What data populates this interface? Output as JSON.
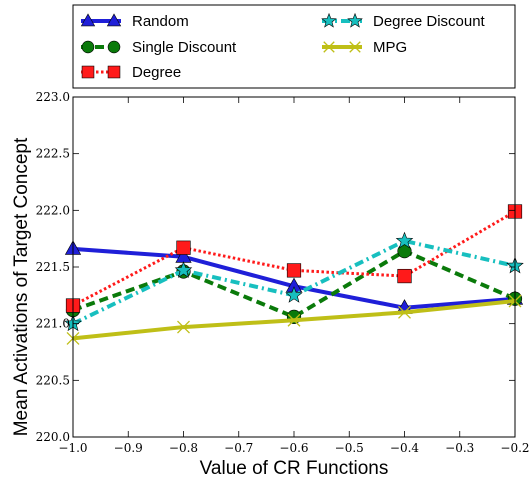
{
  "chart_data": {
    "type": "line",
    "x": [
      -1.0,
      -0.8,
      -0.6,
      -0.4,
      -0.2
    ],
    "xlabel": "Value of CR Functions",
    "ylabel": "Mean Activations of Target Concept",
    "xlim": [
      -1.0,
      -0.2
    ],
    "ylim": [
      220.0,
      223.0
    ],
    "xticks": [
      -1.0,
      -0.9,
      -0.8,
      -0.7,
      -0.6,
      -0.5,
      -0.4,
      -0.3,
      -0.2
    ],
    "xtick_labels": [
      "−1.0",
      "−0.9",
      "−0.8",
      "−0.7",
      "−0.6",
      "−0.5",
      "−0.4",
      "−0.3",
      "−0.2"
    ],
    "yticks": [
      220.0,
      220.5,
      221.0,
      221.5,
      222.0,
      222.5,
      223.0
    ],
    "ytick_labels": [
      "220.0",
      "220.5",
      "221.0",
      "221.5",
      "222.0",
      "222.5",
      "223.0"
    ],
    "grid": false,
    "legend_placement": "top (above plot, two columns)",
    "series": [
      {
        "name": "Random",
        "values": [
          221.66,
          221.59,
          221.33,
          221.14,
          221.22
        ],
        "color": "#1f1fd8",
        "style": "solid",
        "marker": "triangle"
      },
      {
        "name": "Single Discount",
        "values": [
          221.12,
          221.46,
          221.06,
          221.64,
          221.22
        ],
        "color": "#0a7a0a",
        "style": "dashed",
        "marker": "circle"
      },
      {
        "name": "Degree",
        "values": [
          221.16,
          221.67,
          221.47,
          221.42,
          221.99
        ],
        "color": "#ff1a1a",
        "style": "dotted",
        "marker": "square"
      },
      {
        "name": "Degree Discount",
        "values": [
          221.0,
          221.47,
          221.25,
          221.73,
          221.51
        ],
        "color": "#17bfbf",
        "style": "dashdot",
        "marker": "star"
      },
      {
        "name": "MPG",
        "values": [
          220.87,
          220.97,
          221.03,
          221.1,
          221.2
        ],
        "color": "#bfbf17",
        "style": "solid",
        "marker": "x"
      }
    ]
  }
}
